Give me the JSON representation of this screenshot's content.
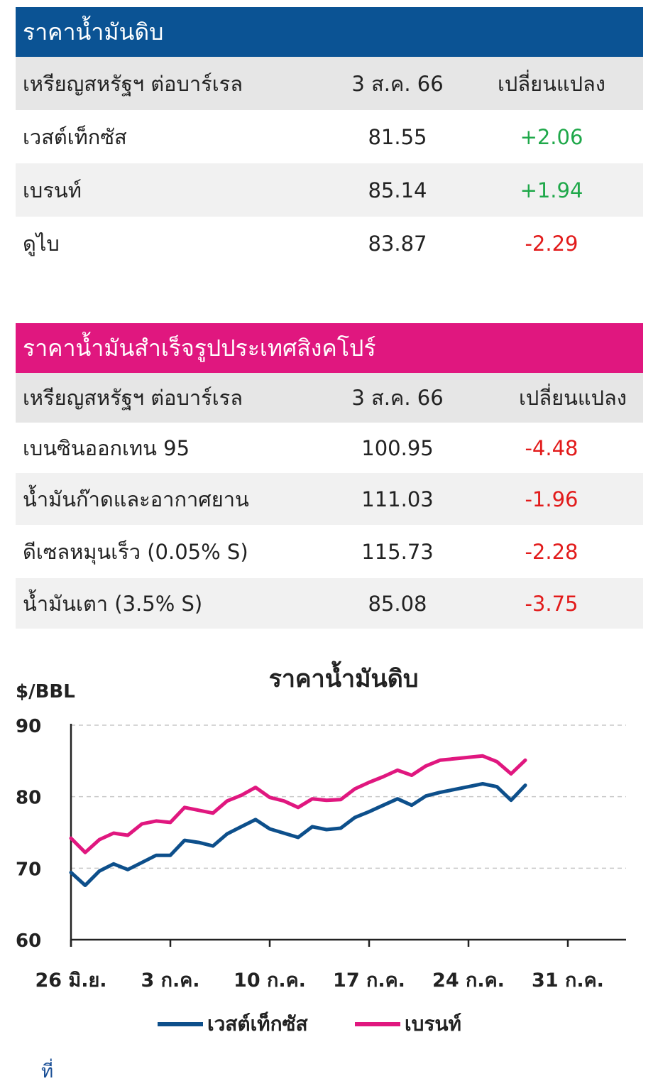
{
  "crude_table": {
    "title": "ราคาน้ำมันดิบ",
    "header": [
      "เหรียญสหรัฐฯ ต่อบาร์เรล",
      "3 ส.ค. 66",
      "เปลี่ยนแปลง"
    ],
    "rows": [
      {
        "name": "เวสต์เท็กซัส",
        "price": "81.55",
        "change": "+2.06"
      },
      {
        "name": "เบรนท์",
        "price": "85.14",
        "change": "+1.94"
      },
      {
        "name": "ดูไบ",
        "price": "83.87",
        "change": "-2.29"
      }
    ],
    "title_color": "#0b5394"
  },
  "refined_table": {
    "title": "ราคาน้ำมันสำเร็จรูปประเทศสิงคโปร์",
    "header": [
      "เหรียญสหรัฐฯ ต่อบาร์เรล",
      "3 ส.ค. 66",
      "เปลี่ยนแปลง"
    ],
    "rows": [
      {
        "name": "เบนซินออกเทน 95",
        "price": "100.95",
        "change": "-4.48"
      },
      {
        "name": "น้ำมันก๊าดและอากาศยาน",
        "price": "111.03",
        "change": "-1.96"
      },
      {
        "name": "ดีเซลหมุนเร็ว (0.05% S)",
        "price": "115.73",
        "change": "-2.28"
      },
      {
        "name": "น้ำมันเตา (3.5% S)",
        "price": "85.08",
        "change": "-3.75"
      }
    ],
    "title_color": "#e0177f"
  },
  "footnote": "ที่",
  "chart_data": {
    "type": "line",
    "title": "ราคาน้ำมันดิบ",
    "ylabel": "$/BBL",
    "xlabel": "",
    "ylim": [
      60,
      90
    ],
    "yticks": [
      "60",
      "70",
      "80",
      "90"
    ],
    "xtick_labels": [
      "26 มิ.ย.",
      "3 ก.ค.",
      "10 ก.ค.",
      "17 ก.ค.",
      "24 ก.ค.",
      "31 ก.ค."
    ],
    "grid": true,
    "legend_position": "bottom",
    "series": [
      {
        "name": "เวสต์เท็กซัส",
        "color": "#0d4f8b",
        "values": [
          69.4,
          67.6,
          69.6,
          70.6,
          69.8,
          70.8,
          71.8,
          71.8,
          73.9,
          73.6,
          73.1,
          74.8,
          75.8,
          76.8,
          75.5,
          74.9,
          74.3,
          75.8,
          75.4,
          75.6,
          77.1,
          77.9,
          78.8,
          79.7,
          78.8,
          80.1,
          80.6,
          81.0,
          81.4,
          81.8,
          81.4,
          79.5,
          81.6
        ]
      },
      {
        "name": "เบรนท์",
        "color": "#e0177f",
        "values": [
          74.2,
          72.2,
          74.0,
          74.9,
          74.6,
          76.2,
          76.6,
          76.4,
          78.5,
          78.1,
          77.7,
          79.4,
          80.2,
          81.3,
          79.9,
          79.4,
          78.5,
          79.7,
          79.5,
          79.6,
          81.1,
          82.0,
          82.8,
          83.7,
          83.0,
          84.3,
          85.1,
          85.3,
          85.5,
          85.7,
          84.9,
          83.2,
          85.1
        ]
      }
    ]
  }
}
